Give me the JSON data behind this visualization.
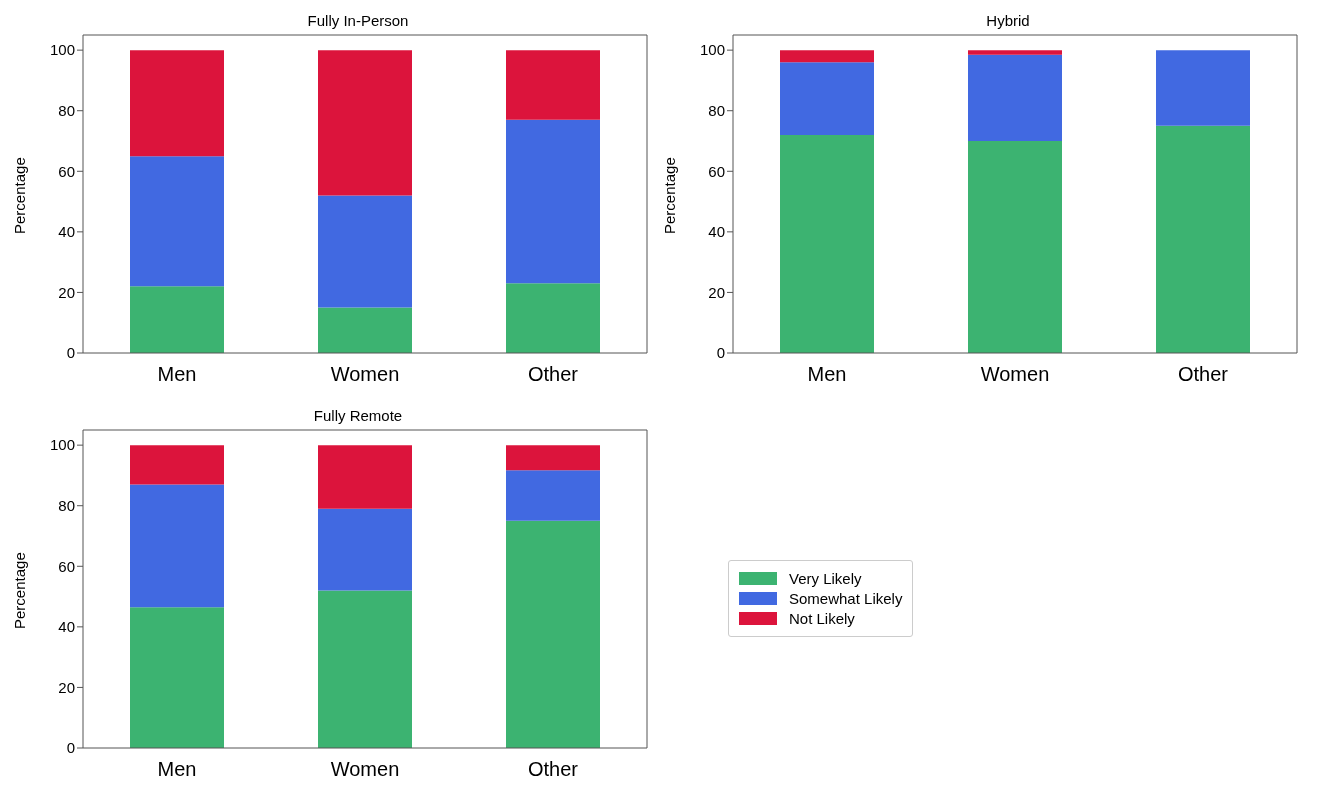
{
  "chart_data": [
    {
      "type": "bar",
      "title": "Fully In-Person",
      "ylabel": "Percentage",
      "categories": [
        "Men",
        "Women",
        "Other"
      ],
      "stacked": true,
      "ylim": [
        0,
        105
      ],
      "yticks": [
        0,
        20,
        40,
        60,
        80,
        100
      ],
      "grid": false,
      "series": [
        {
          "color": "#3cb371",
          "values": [
            22,
            15,
            23
          ]
        },
        {
          "color": "#4169e1",
          "values": [
            43,
            37,
            54
          ]
        },
        {
          "color": "#dc143c",
          "values": [
            35,
            48,
            23
          ]
        }
      ]
    },
    {
      "type": "bar",
      "title": "Hybrid",
      "ylabel": "Percentage",
      "categories": [
        "Men",
        "Women",
        "Other"
      ],
      "stacked": true,
      "ylim": [
        0,
        105
      ],
      "yticks": [
        0,
        20,
        40,
        60,
        80,
        100
      ],
      "grid": false,
      "series": [
        {
          "color": "#3cb371",
          "values": [
            72,
            70,
            75
          ]
        },
        {
          "color": "#4169e1",
          "values": [
            24,
            28.5,
            25
          ]
        },
        {
          "color": "#dc143c",
          "values": [
            4,
            1.5,
            0
          ]
        }
      ]
    },
    {
      "type": "bar",
      "title": "Fully Remote",
      "ylabel": "Percentage",
      "categories": [
        "Men",
        "Women",
        "Other"
      ],
      "stacked": true,
      "ylim": [
        0,
        105
      ],
      "yticks": [
        0,
        20,
        40,
        60,
        80,
        100
      ],
      "grid": false,
      "legend": "right",
      "series": [
        {
          "name": "Very Likely",
          "color": "#3cb371",
          "values": [
            46.5,
            52,
            75
          ]
        },
        {
          "name": "Somewhat Likely",
          "color": "#4169e1",
          "values": [
            40.5,
            27,
            16.7
          ]
        },
        {
          "name": "Not Likely",
          "color": "#dc143c",
          "values": [
            13,
            21,
            8.3
          ]
        }
      ]
    }
  ]
}
